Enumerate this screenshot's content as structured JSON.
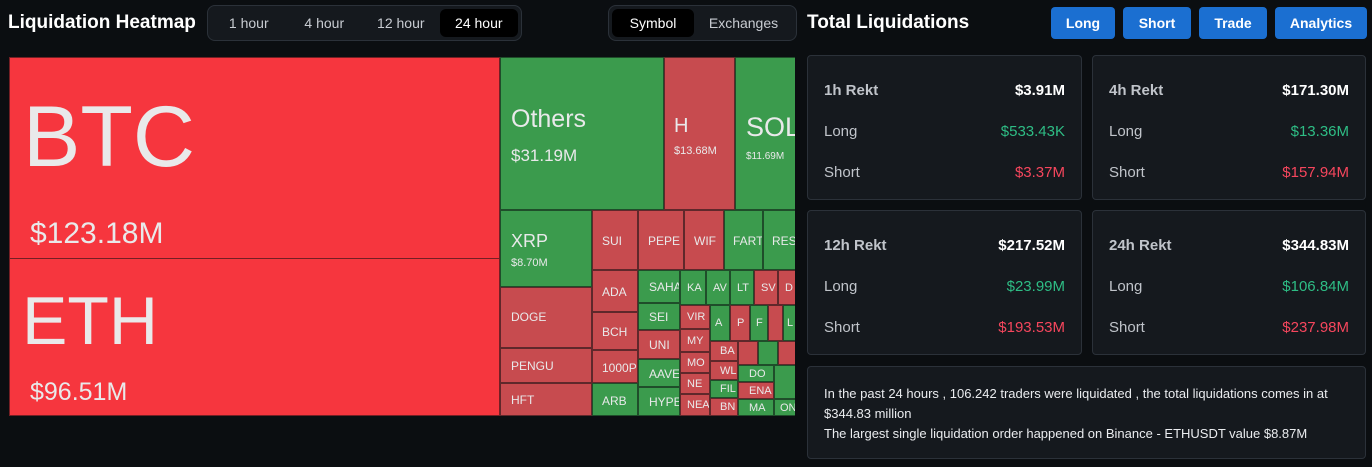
{
  "heatmap": {
    "title": "Liquidation Heatmap",
    "timeframes": [
      "1 hour",
      "4 hour",
      "12 hour",
      "24 hour"
    ],
    "active_timeframe": "24 hour",
    "views": [
      "Symbol",
      "Exchanges"
    ],
    "active_view": "Symbol",
    "tiles": [
      {
        "name": "BTC",
        "value": "$123.18M"
      },
      {
        "name": "ETH",
        "value": "$96.51M"
      },
      {
        "name": "Others",
        "value": "$31.19M"
      },
      {
        "name": "H",
        "value": "$13.68M"
      },
      {
        "name": "SOL",
        "value": "$11.69M"
      },
      {
        "name": "XRP",
        "value": "$8.70M"
      },
      {
        "name": "DOGE",
        "value": ""
      },
      {
        "name": "PENGU",
        "value": ""
      },
      {
        "name": "HFT",
        "value": ""
      },
      {
        "name": "SUI",
        "value": ""
      },
      {
        "name": "PEPE",
        "value": ""
      },
      {
        "name": "WIF",
        "value": ""
      },
      {
        "name": "FART",
        "value": ""
      },
      {
        "name": "RES",
        "value": ""
      },
      {
        "name": "ADA",
        "value": ""
      },
      {
        "name": "BCH",
        "value": ""
      },
      {
        "name": "1000P",
        "value": ""
      },
      {
        "name": "ARB",
        "value": ""
      },
      {
        "name": "SAHA",
        "value": ""
      },
      {
        "name": "SEI",
        "value": ""
      },
      {
        "name": "UNI",
        "value": ""
      },
      {
        "name": "AAVE",
        "value": ""
      },
      {
        "name": "HYPE",
        "value": ""
      },
      {
        "name": "KA",
        "value": ""
      },
      {
        "name": "AV",
        "value": ""
      },
      {
        "name": "LT",
        "value": ""
      },
      {
        "name": "SV",
        "value": ""
      },
      {
        "name": "D",
        "value": ""
      },
      {
        "name": "VIR",
        "value": ""
      },
      {
        "name": "MY",
        "value": ""
      },
      {
        "name": "MO",
        "value": ""
      },
      {
        "name": "NE",
        "value": ""
      },
      {
        "name": "NEA",
        "value": ""
      },
      {
        "name": "BA",
        "value": ""
      },
      {
        "name": "WL",
        "value": ""
      },
      {
        "name": "FIL",
        "value": ""
      },
      {
        "name": "BN",
        "value": ""
      },
      {
        "name": "DO",
        "value": ""
      },
      {
        "name": "ENA",
        "value": ""
      },
      {
        "name": "MA",
        "value": ""
      },
      {
        "name": "ON",
        "value": ""
      },
      {
        "name": "A",
        "value": ""
      },
      {
        "name": "P",
        "value": ""
      },
      {
        "name": "F",
        "value": ""
      },
      {
        "name": "L",
        "value": ""
      }
    ]
  },
  "total": {
    "title": "Total Liquidations",
    "buttons": [
      "Long",
      "Short",
      "Trade",
      "Analytics"
    ],
    "cards": [
      {
        "period": "1h Rekt",
        "total": "$3.91M",
        "long_label": "Long",
        "long": "$533.43K",
        "short_label": "Short",
        "short": "$3.37M"
      },
      {
        "period": "4h Rekt",
        "total": "$171.30M",
        "long_label": "Long",
        "long": "$13.36M",
        "short_label": "Short",
        "short": "$157.94M"
      },
      {
        "period": "12h Rekt",
        "total": "$217.52M",
        "long_label": "Long",
        "long": "$23.99M",
        "short_label": "Short",
        "short": "$193.53M"
      },
      {
        "period": "24h Rekt",
        "total": "$344.83M",
        "long_label": "Long",
        "long": "$106.84M",
        "short_label": "Short",
        "short": "$237.98M"
      }
    ],
    "summary_line1": "In the past 24 hours , 106.242 traders were liquidated , the total liquidations comes in at $344.83 million",
    "summary_line2": "The largest single liquidation order happened on Binance - ETHUSDT value $8.87M"
  },
  "colors": {
    "long": "#2ebd85",
    "short": "#f6465d",
    "accent": "#1b6fd1",
    "tile_red": "#c74b4f",
    "tile_green": "#3b9b4d",
    "tile_red_bright": "#f6363e"
  }
}
